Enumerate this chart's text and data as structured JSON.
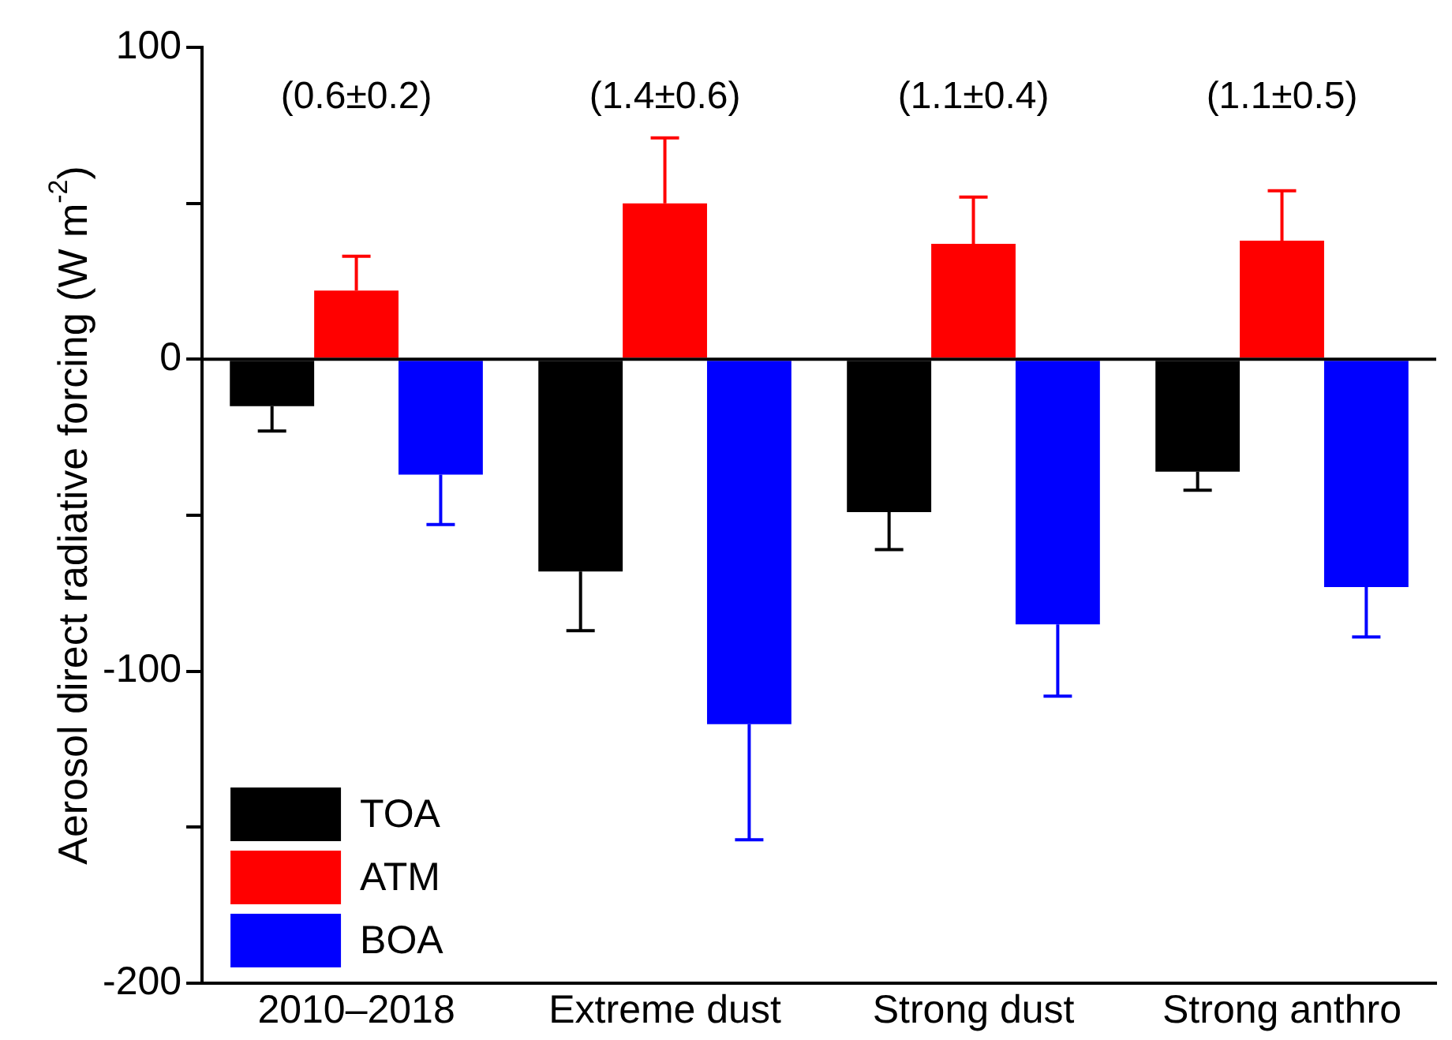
{
  "chart_data": {
    "type": "bar",
    "ylabel": "Aerosol direct radiative forcing (W m$^{-2}$)",
    "categories": [
      "2010–2018",
      "Extreme dust",
      "Strong dust",
      "Strong anthro"
    ],
    "series": [
      {
        "name": "TOA",
        "color": "#000000",
        "values": [
          -15,
          -68,
          -49,
          -36
        ],
        "errors": [
          [
            -23,
            -15
          ],
          [
            -87,
            -68
          ],
          [
            -61,
            -49
          ],
          [
            -42,
            -36
          ]
        ]
      },
      {
        "name": "ATM",
        "color": "#ff0000",
        "values": [
          22,
          50,
          37,
          38
        ],
        "errors": [
          [
            22,
            33
          ],
          [
            50,
            71
          ],
          [
            37,
            52
          ],
          [
            38,
            54
          ]
        ]
      },
      {
        "name": "BOA",
        "color": "#0000ff",
        "values": [
          -37,
          -117,
          -85,
          -73
        ],
        "errors": [
          [
            -53,
            -37
          ],
          [
            -154,
            -117
          ],
          [
            -108,
            -85
          ],
          [
            -89,
            -73
          ]
        ]
      }
    ],
    "ylim": [
      -200,
      100
    ],
    "yticks": [
      -200,
      {
        "value": -150,
        "label": null
      },
      -100,
      {
        "value": -50,
        "label": null
      },
      0,
      {
        "value": 50,
        "label": null
      },
      100
    ],
    "ref_lines": [
      {
        "axis": "y",
        "value": 0,
        "color": "#000000"
      }
    ],
    "annotations": [
      "(0.6±0.2)",
      "(1.4±0.6)",
      "(1.1±0.4)",
      "(1.1±0.5)"
    ],
    "legend": "bottom left",
    "grid": false
  }
}
